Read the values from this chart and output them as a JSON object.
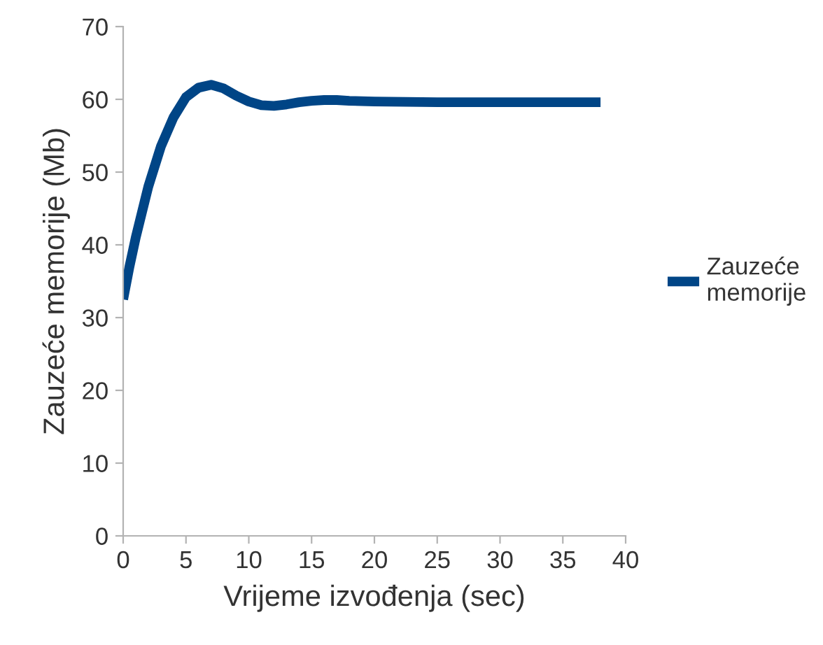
{
  "chart_data": {
    "type": "line",
    "xlabel": "Vrijeme izvođenja (sec)",
    "ylabel": "Zauzeće memorije (Mb)",
    "xlim": [
      0,
      40
    ],
    "xticks": [
      0,
      5,
      10,
      15,
      20,
      25,
      30,
      35,
      40
    ],
    "ylim": [
      0,
      70
    ],
    "yticks": [
      0,
      10,
      20,
      30,
      40,
      50,
      60,
      70
    ],
    "grid": false,
    "legend": "right",
    "marker": "none",
    "line_style": "solid",
    "series": [
      {
        "name": "Zauzeće memorije",
        "color": "#004586",
        "x": [
          0,
          0.5,
          1,
          1.5,
          2,
          3,
          4,
          5,
          6,
          7,
          8,
          9,
          10,
          11,
          12,
          13,
          14,
          15,
          16,
          17,
          18,
          20,
          25,
          30,
          35,
          38
        ],
        "values": [
          32.5,
          37,
          41,
          44.5,
          48,
          53.5,
          57.5,
          60.3,
          61.6,
          62,
          61.5,
          60.5,
          59.7,
          59.2,
          59.1,
          59.3,
          59.6,
          59.8,
          59.9,
          59.9,
          59.8,
          59.7,
          59.6,
          59.6,
          59.6,
          59.6
        ]
      }
    ]
  }
}
